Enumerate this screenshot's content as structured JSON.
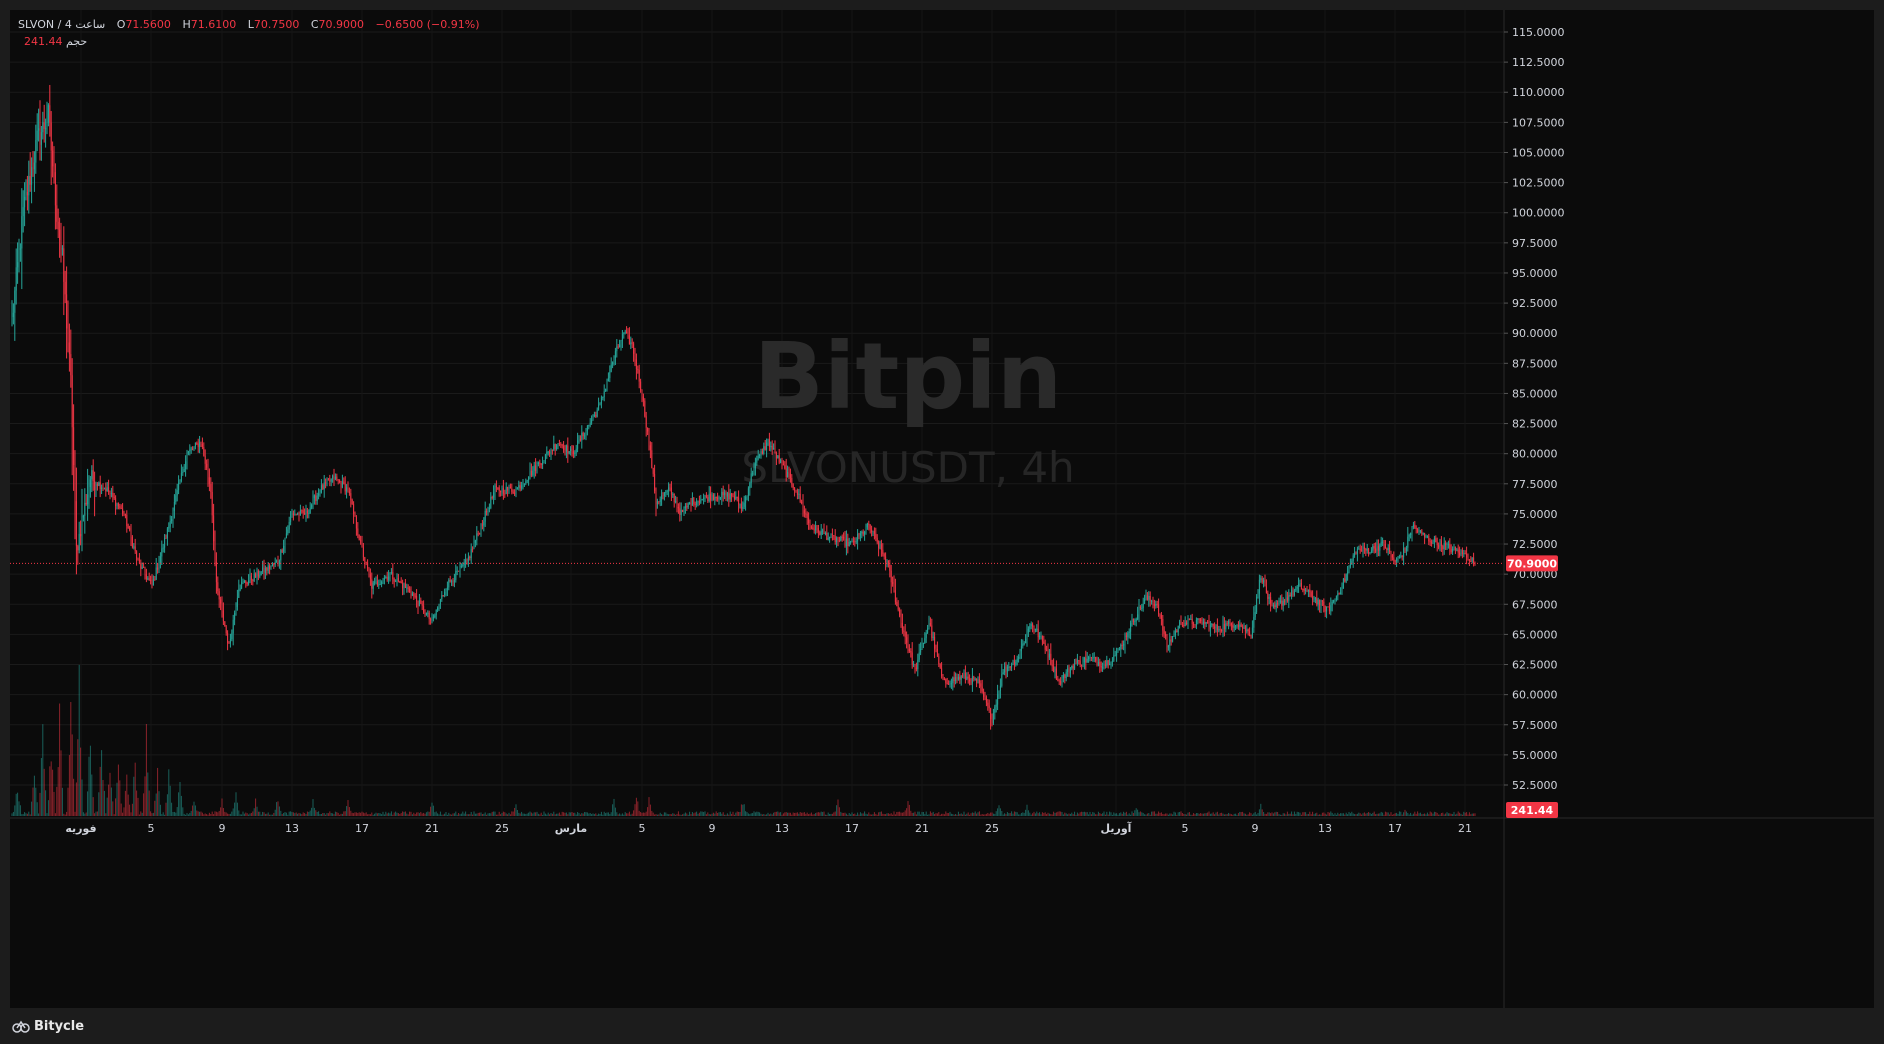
{
  "legend": {
    "symbol": "SLVON / 4 ساعت",
    "open_label": "O",
    "open": "71.5600",
    "high_label": "H",
    "high": "71.6100",
    "low_label": "L",
    "low": "70.7500",
    "close_label": "C",
    "close": "70.9000",
    "change": "−0.6500 (−0.91%)",
    "volume_label": "حجم",
    "volume": "241.44"
  },
  "watermark": {
    "brand": "Bitpin",
    "pair": "SLVONUSDT, 4h"
  },
  "price_axis": {
    "ticks": [
      "115.0000",
      "112.5000",
      "110.0000",
      "107.5000",
      "105.0000",
      "102.5000",
      "100.0000",
      "97.5000",
      "95.0000",
      "92.5000",
      "90.0000",
      "87.5000",
      "85.0000",
      "82.5000",
      "80.0000",
      "77.5000",
      "75.0000",
      "72.5000",
      "70.0000",
      "67.5000",
      "65.0000",
      "62.5000",
      "60.0000",
      "57.5000",
      "55.0000",
      "52.5000"
    ],
    "last_price_label": "70.9000",
    "volume_label": "241.44"
  },
  "time_axis": {
    "labels": [
      "فوریه",
      "5",
      "9",
      "13",
      "17",
      "21",
      "25",
      "مارس",
      "5",
      "9",
      "13",
      "17",
      "21",
      "25",
      "آوریل",
      "5",
      "9",
      "13",
      "17",
      "21"
    ],
    "month_labels": [
      "فوریه",
      "مارس",
      "آوریل"
    ]
  },
  "footer": {
    "brand": "Bitycle"
  },
  "colors": {
    "up": "#26a69a",
    "down": "#f23645",
    "background": "#0b0b0b",
    "grid": "#1a1a1a"
  },
  "chart_data": {
    "type": "candlestick",
    "symbol": "SLVONUSDT",
    "interval": "4h",
    "ylim": [
      51,
      116
    ],
    "last_price": 70.9,
    "grid": true,
    "anchors": [
      {
        "x": 0,
        "c": 91
      },
      {
        "x": 8,
        "c": 100
      },
      {
        "x": 18,
        "c": 106
      },
      {
        "x": 26,
        "c": 108
      },
      {
        "x": 32,
        "c": 100
      },
      {
        "x": 36,
        "c": 96
      },
      {
        "x": 42,
        "c": 86
      },
      {
        "x": 46,
        "c": 72
      },
      {
        "x": 56,
        "c": 78
      },
      {
        "x": 68,
        "c": 77
      },
      {
        "x": 80,
        "c": 75
      },
      {
        "x": 90,
        "c": 71
      },
      {
        "x": 100,
        "c": 69
      },
      {
        "x": 112,
        "c": 74
      },
      {
        "x": 125,
        "c": 80
      },
      {
        "x": 135,
        "c": 81
      },
      {
        "x": 142,
        "c": 77
      },
      {
        "x": 146,
        "c": 69
      },
      {
        "x": 155,
        "c": 64
      },
      {
        "x": 162,
        "c": 69
      },
      {
        "x": 176,
        "c": 70
      },
      {
        "x": 190,
        "c": 71
      },
      {
        "x": 200,
        "c": 75
      },
      {
        "x": 210,
        "c": 75
      },
      {
        "x": 220,
        "c": 77
      },
      {
        "x": 230,
        "c": 78
      },
      {
        "x": 240,
        "c": 77
      },
      {
        "x": 250,
        "c": 72
      },
      {
        "x": 257,
        "c": 69
      },
      {
        "x": 270,
        "c": 70
      },
      {
        "x": 285,
        "c": 68.5
      },
      {
        "x": 300,
        "c": 66
      },
      {
        "x": 310,
        "c": 69
      },
      {
        "x": 325,
        "c": 71
      },
      {
        "x": 335,
        "c": 74
      },
      {
        "x": 345,
        "c": 77
      },
      {
        "x": 360,
        "c": 77
      },
      {
        "x": 375,
        "c": 79
      },
      {
        "x": 390,
        "c": 81
      },
      {
        "x": 400,
        "c": 80
      },
      {
        "x": 410,
        "c": 82
      },
      {
        "x": 420,
        "c": 84
      },
      {
        "x": 430,
        "c": 88
      },
      {
        "x": 437,
        "c": 90
      },
      {
        "x": 443,
        "c": 89
      },
      {
        "x": 450,
        "c": 85
      },
      {
        "x": 456,
        "c": 80
      },
      {
        "x": 460,
        "c": 76
      },
      {
        "x": 470,
        "c": 77
      },
      {
        "x": 478,
        "c": 75
      },
      {
        "x": 485,
        "c": 76
      },
      {
        "x": 500,
        "c": 76.5
      },
      {
        "x": 515,
        "c": 76.5
      },
      {
        "x": 522,
        "c": 75.5
      },
      {
        "x": 530,
        "c": 79
      },
      {
        "x": 540,
        "c": 81
      },
      {
        "x": 550,
        "c": 79
      },
      {
        "x": 560,
        "c": 77
      },
      {
        "x": 570,
        "c": 74
      },
      {
        "x": 585,
        "c": 73
      },
      {
        "x": 600,
        "c": 72.5
      },
      {
        "x": 612,
        "c": 74
      },
      {
        "x": 625,
        "c": 71
      },
      {
        "x": 635,
        "c": 66
      },
      {
        "x": 645,
        "c": 62
      },
      {
        "x": 655,
        "c": 66
      },
      {
        "x": 665,
        "c": 61
      },
      {
        "x": 680,
        "c": 61.5
      },
      {
        "x": 690,
        "c": 61
      },
      {
        "x": 700,
        "c": 58
      },
      {
        "x": 708,
        "c": 62
      },
      {
        "x": 718,
        "c": 63
      },
      {
        "x": 728,
        "c": 66
      },
      {
        "x": 738,
        "c": 64
      },
      {
        "x": 748,
        "c": 61
      },
      {
        "x": 758,
        "c": 62.5
      },
      {
        "x": 770,
        "c": 63
      },
      {
        "x": 780,
        "c": 62.5
      },
      {
        "x": 790,
        "c": 63.5
      },
      {
        "x": 800,
        "c": 66
      },
      {
        "x": 810,
        "c": 68
      },
      {
        "x": 818,
        "c": 67.5
      },
      {
        "x": 825,
        "c": 64
      },
      {
        "x": 835,
        "c": 66
      },
      {
        "x": 850,
        "c": 66
      },
      {
        "x": 860,
        "c": 65.5
      },
      {
        "x": 875,
        "c": 66
      },
      {
        "x": 885,
        "c": 65
      },
      {
        "x": 892,
        "c": 70
      },
      {
        "x": 900,
        "c": 67
      },
      {
        "x": 910,
        "c": 68
      },
      {
        "x": 920,
        "c": 69
      },
      {
        "x": 930,
        "c": 68
      },
      {
        "x": 940,
        "c": 67
      },
      {
        "x": 950,
        "c": 69
      },
      {
        "x": 960,
        "c": 72
      },
      {
        "x": 970,
        "c": 72
      },
      {
        "x": 980,
        "c": 72.5
      },
      {
        "x": 988,
        "c": 71
      },
      {
        "x": 995,
        "c": 72
      },
      {
        "x": 1000,
        "c": 74
      },
      {
        "x": 1010,
        "c": 73
      },
      {
        "x": 1020,
        "c": 72.5
      },
      {
        "x": 1030,
        "c": 72
      },
      {
        "x": 1040,
        "c": 71.5
      },
      {
        "x": 1045,
        "c": 70.9
      }
    ],
    "volume_spikes": [
      {
        "x": 4,
        "v": 260
      },
      {
        "x": 16,
        "v": 420
      },
      {
        "x": 22,
        "v": 650
      },
      {
        "x": 28,
        "v": 620
      },
      {
        "x": 34,
        "v": 820
      },
      {
        "x": 42,
        "v": 900
      },
      {
        "x": 48,
        "v": 1200
      },
      {
        "x": 56,
        "v": 700
      },
      {
        "x": 64,
        "v": 600
      },
      {
        "x": 70,
        "v": 450
      },
      {
        "x": 76,
        "v": 420
      },
      {
        "x": 82,
        "v": 300
      },
      {
        "x": 88,
        "v": 430
      },
      {
        "x": 96,
        "v": 650
      },
      {
        "x": 104,
        "v": 380
      },
      {
        "x": 112,
        "v": 330
      },
      {
        "x": 120,
        "v": 260
      },
      {
        "x": 130,
        "v": 160
      },
      {
        "x": 150,
        "v": 140
      },
      {
        "x": 160,
        "v": 180
      },
      {
        "x": 174,
        "v": 130
      },
      {
        "x": 190,
        "v": 160
      },
      {
        "x": 215,
        "v": 140
      },
      {
        "x": 240,
        "v": 130
      },
      {
        "x": 300,
        "v": 120
      },
      {
        "x": 360,
        "v": 100
      },
      {
        "x": 430,
        "v": 130
      },
      {
        "x": 446,
        "v": 160
      },
      {
        "x": 455,
        "v": 140
      },
      {
        "x": 522,
        "v": 130
      },
      {
        "x": 590,
        "v": 120
      },
      {
        "x": 640,
        "v": 140
      },
      {
        "x": 705,
        "v": 120
      },
      {
        "x": 725,
        "v": 90
      },
      {
        "x": 803,
        "v": 80
      },
      {
        "x": 892,
        "v": 95
      },
      {
        "x": 995,
        "v": 45
      }
    ]
  }
}
